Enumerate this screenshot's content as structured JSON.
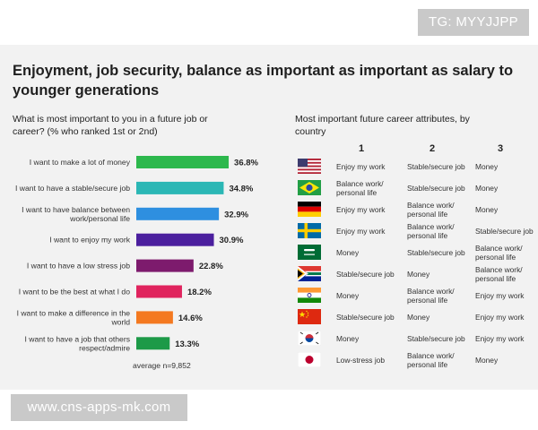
{
  "title": "Enjoyment, job security, balance as important as important as salary to younger generations",
  "watermark_top": "TG: MYYJJPP",
  "watermark_bottom": "www.cns-apps-mk.com",
  "left_subtitle": "What is most important to you in a future job or career? (% who ranked 1st or 2nd)",
  "right_subtitle": "Most important future career attributes, by country",
  "chart_data": {
    "type": "bar",
    "orientation": "horizontal",
    "title": "What is most important to you in a future job or career? (% who ranked 1st or 2nd)",
    "categories": [
      "I want to make a lot of money",
      "I want to have a stable/secure job",
      "I want to have balance between work/personal life",
      "I want to enjoy my work",
      "I want to have a low stress job",
      "I want to be the best at what I do",
      "I want to make a difference in the world",
      "I want to have a job that others respect/admire"
    ],
    "values": [
      36.8,
      34.8,
      32.9,
      30.9,
      22.8,
      18.2,
      14.6,
      13.3
    ],
    "value_labels": [
      "36.8%",
      "34.8%",
      "32.9%",
      "30.9%",
      "22.8%",
      "18.2%",
      "14.6%",
      "13.3%"
    ],
    "label_lines": [
      [
        "I want to make a lot of money"
      ],
      [
        "I want to have a stable/secure job"
      ],
      [
        "I want to have balance between",
        "work/personal life"
      ],
      [
        "I want to enjoy my work"
      ],
      [
        "I want to have a low stress job"
      ],
      [
        "I want to be the best at what I do"
      ],
      [
        "I want to make a difference in the",
        "world"
      ],
      [
        "I want to have a job that others",
        "respect/admire"
      ]
    ],
    "colors": [
      "#2db84d",
      "#2bb7b5",
      "#2e8fe0",
      "#4b1f9e",
      "#7d1b6d",
      "#e0245e",
      "#f47920",
      "#1d9a48"
    ],
    "xlim": [
      0,
      40
    ],
    "grid": false,
    "annotation": "average n=9,852"
  },
  "country_table": {
    "rank_headers": [
      "1",
      "2",
      "3"
    ],
    "rows": [
      {
        "flag": "usa-flag",
        "c1": "Enjoy my work",
        "c2": "Stable/secure job",
        "c3": "Money"
      },
      {
        "flag": "brazil-flag",
        "c1": "Balance work/ personal life",
        "c2": "Stable/secure job",
        "c3": "Money"
      },
      {
        "flag": "germany-flag",
        "c1": "Enjoy my work",
        "c2": "Balance work/ personal life",
        "c3": "Money"
      },
      {
        "flag": "sweden-flag",
        "c1": "Enjoy my work",
        "c2": "Balance work/ personal life",
        "c3": "Stable/secure job"
      },
      {
        "flag": "saudi-arabia-flag",
        "c1": "Money",
        "c2": "Stable/secure job",
        "c3": "Balance work/ personal life"
      },
      {
        "flag": "south-africa-flag",
        "c1": "Stable/secure job",
        "c2": "Money",
        "c3": "Balance work/ personal life"
      },
      {
        "flag": "india-flag",
        "c1": "Money",
        "c2": "Balance work/ personal life",
        "c3": "Enjoy my work"
      },
      {
        "flag": "china-flag",
        "c1": "Stable/secure job",
        "c2": "Money",
        "c3": "Enjoy my work"
      },
      {
        "flag": "south-korea-flag",
        "c1": "Money",
        "c2": "Stable/secure job",
        "c3": "Enjoy my work"
      },
      {
        "flag": "japan-flag",
        "c1": "Low-stress job",
        "c2": "Balance work/ personal life",
        "c3": "Money"
      }
    ]
  }
}
